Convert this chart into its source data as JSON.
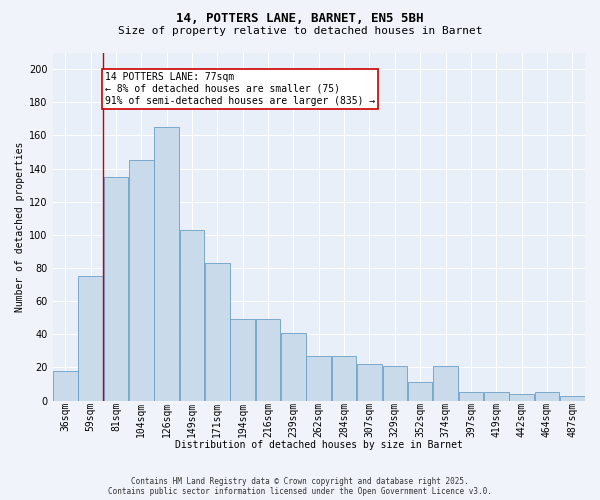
{
  "title1": "14, POTTERS LANE, BARNET, EN5 5BH",
  "title2": "Size of property relative to detached houses in Barnet",
  "xlabel": "Distribution of detached houses by size in Barnet",
  "ylabel": "Number of detached properties",
  "categories": [
    "36sqm",
    "59sqm",
    "81sqm",
    "104sqm",
    "126sqm",
    "149sqm",
    "171sqm",
    "194sqm",
    "216sqm",
    "239sqm",
    "262sqm",
    "284sqm",
    "307sqm",
    "329sqm",
    "352sqm",
    "374sqm",
    "397sqm",
    "419sqm",
    "442sqm",
    "464sqm",
    "487sqm"
  ],
  "values": [
    18,
    75,
    135,
    145,
    165,
    103,
    83,
    49,
    49,
    41,
    27,
    27,
    22,
    21,
    11,
    21,
    5,
    5,
    4,
    5,
    3
  ],
  "bar_color": "#c9daea",
  "bar_edge_color": "#6b9ec8",
  "red_line_x": 1.5,
  "ann_line1": "14 POTTERS LANE: 77sqm",
  "ann_line2": "← 8% of detached houses are smaller (75)",
  "ann_line3": "91% of semi-detached houses are larger (835) →",
  "footer": "Contains HM Land Registry data © Crown copyright and database right 2025.\nContains public sector information licensed under the Open Government Licence v3.0.",
  "ylim": [
    0,
    210
  ],
  "yticks": [
    0,
    20,
    40,
    60,
    80,
    100,
    120,
    140,
    160,
    180,
    200
  ],
  "bg_color": "#e8eff8",
  "grid_color": "#ffffff",
  "fig_bg": "#f0f4fa",
  "title1_fontsize": 9,
  "title2_fontsize": 8,
  "axis_fontsize": 7,
  "tick_fontsize": 7,
  "footer_fontsize": 5.5,
  "ann_fontsize": 7
}
